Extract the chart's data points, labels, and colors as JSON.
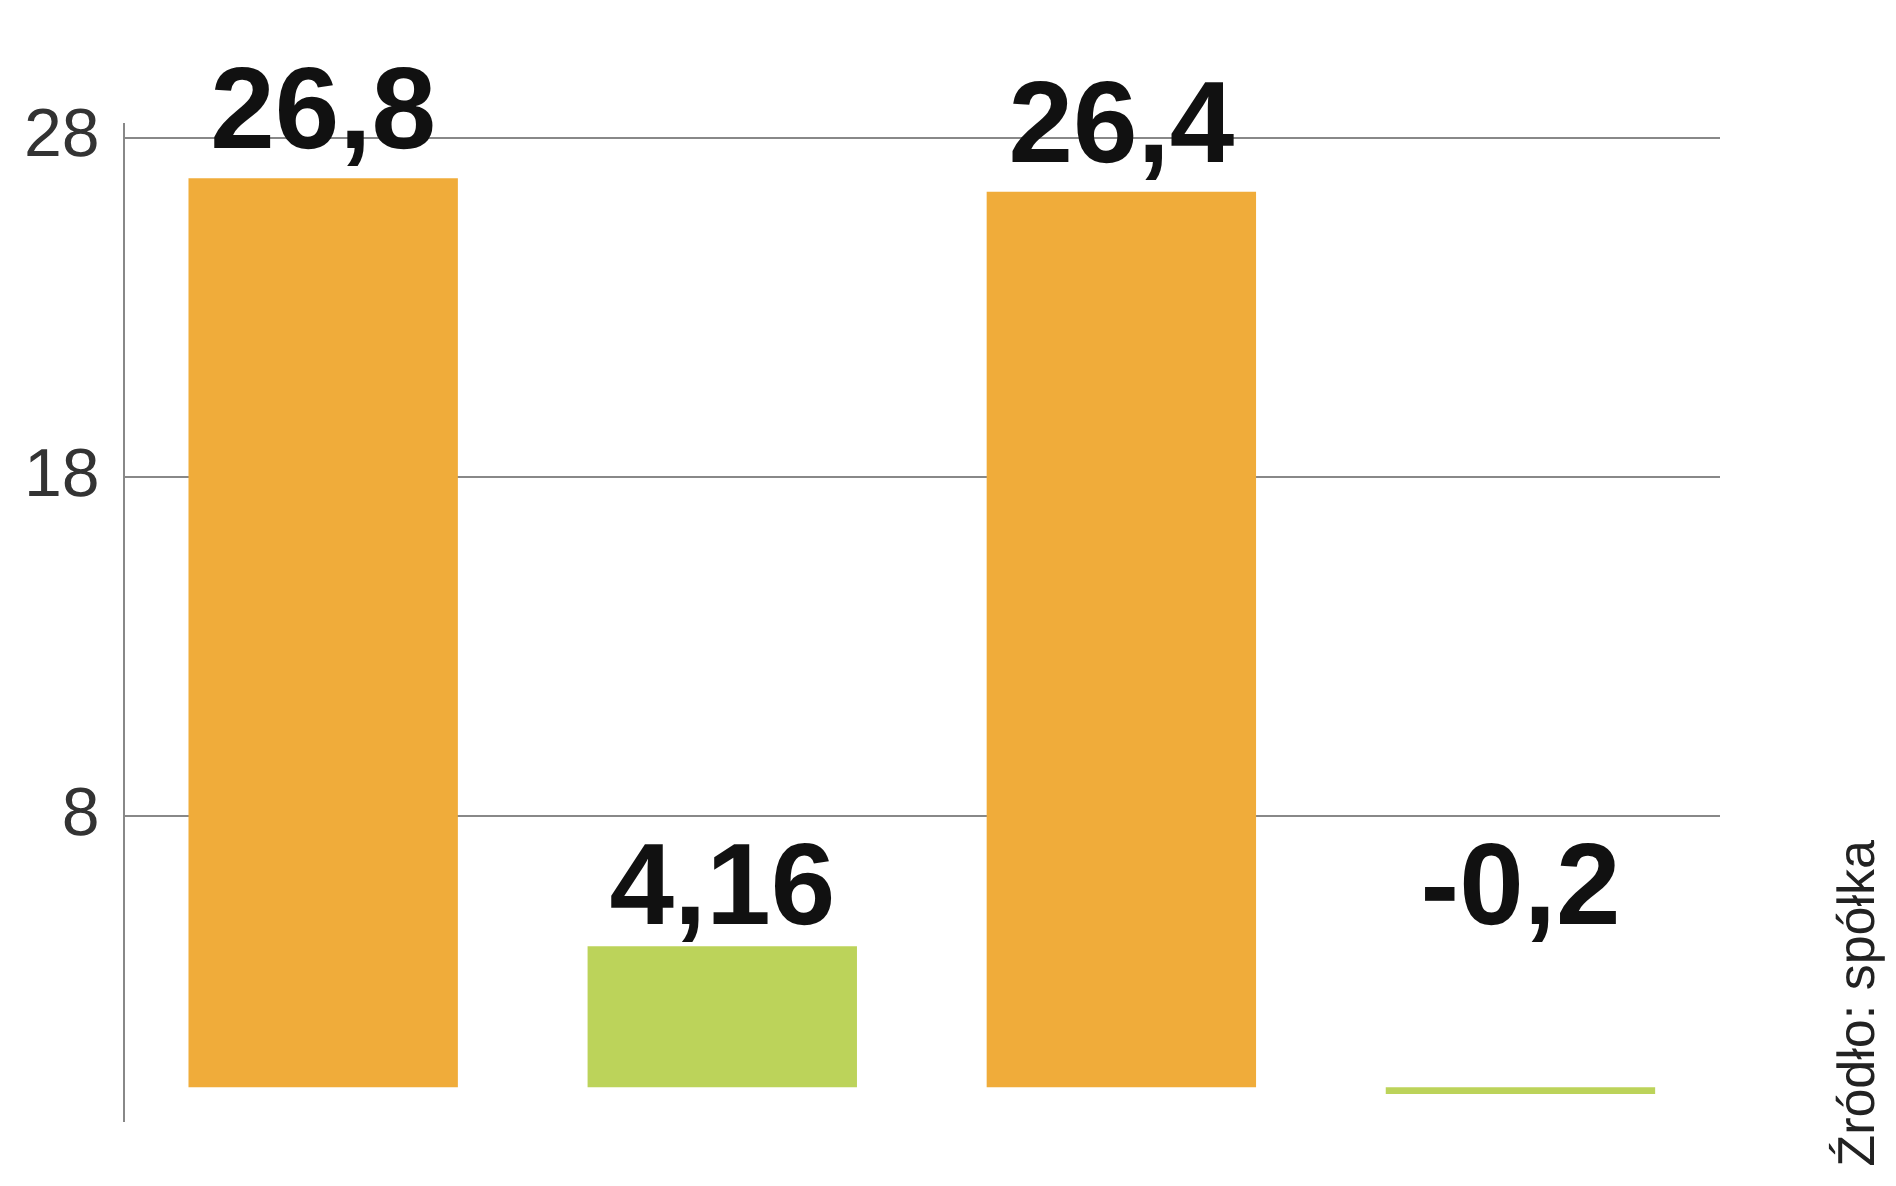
{
  "chart_data": {
    "type": "bar",
    "categories": [
      null,
      null,
      null,
      null
    ],
    "values": [
      26.8,
      4.16,
      26.4,
      -0.2
    ],
    "colors": [
      "#f0ac3a",
      "#bcd35a",
      "#f0ac3a",
      "#bcd35a"
    ],
    "value_labels": [
      "26,8",
      "4,16",
      "26,4",
      "-0,2"
    ],
    "ylim": [
      -1,
      28.4
    ],
    "yticks": [
      8,
      18,
      28
    ],
    "grid": "y",
    "tick_labels": "y",
    "annotations": [
      "Źródło: spółka"
    ]
  }
}
